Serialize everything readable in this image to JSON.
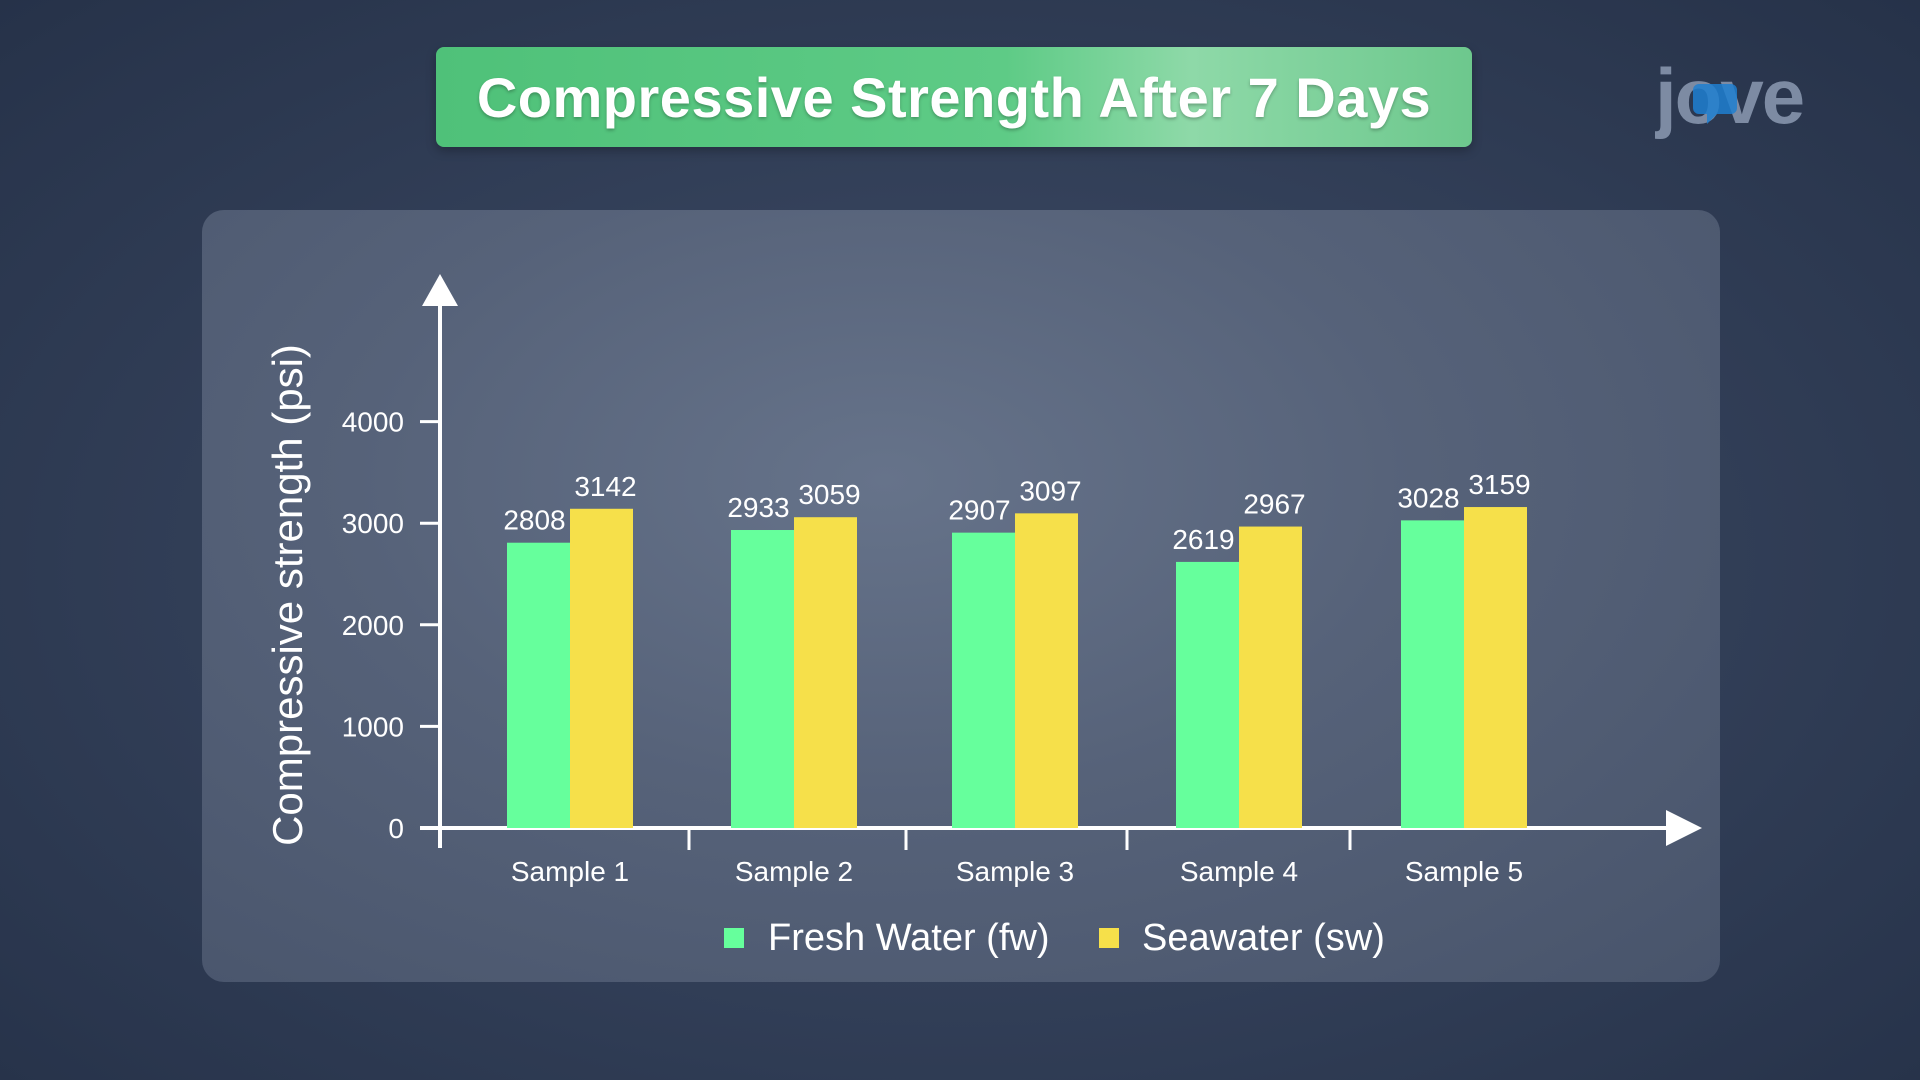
{
  "title": "Compressive Strength After 7 Days",
  "logo": {
    "text": "jove",
    "icon": "jove-logo-icon"
  },
  "colors": {
    "fresh_water": "#66ff9c",
    "seawater": "#f6e04a",
    "title_banner": "#5ecb86",
    "axis": "#ffffff"
  },
  "chart_data": {
    "type": "bar",
    "title": "",
    "ylabel": "Compressive strength (psi)",
    "xlabel": "",
    "categories": [
      "Sample 1",
      "Sample 2",
      "Sample 3",
      "Sample 4",
      "Sample 5"
    ],
    "series": [
      {
        "name": "Fresh Water (fw)",
        "values": [
          2808,
          2933,
          2907,
          2619,
          3028
        ],
        "color": "#66ff9c"
      },
      {
        "name": "Seawater (sw)",
        "values": [
          3142,
          3059,
          3097,
          2967,
          3159
        ],
        "color": "#f6e04a"
      }
    ],
    "yticks": [
      "0",
      "1000",
      "2000",
      "3000",
      "4000"
    ],
    "ylim": [
      0,
      4000
    ],
    "grid": false,
    "legend": "bottom"
  }
}
